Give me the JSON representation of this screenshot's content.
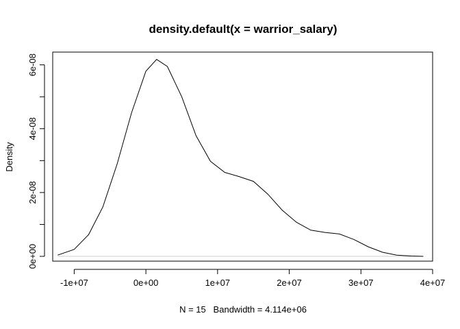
{
  "chart_data": {
    "type": "line",
    "title": "density.default(x = warrior_salary)",
    "xlabel": "N = 15   Bandwidth = 4.114e+06",
    "ylabel": "Density",
    "xlim": [
      -13000000,
      40000000
    ],
    "ylim": [
      -1.5e-09,
      6.4e-08
    ],
    "x_ticks": [
      {
        "value": -10000000,
        "label": "-1e+07"
      },
      {
        "value": 0,
        "label": "0e+00"
      },
      {
        "value": 10000000,
        "label": "1e+07"
      },
      {
        "value": 20000000,
        "label": "2e+07"
      },
      {
        "value": 30000000,
        "label": "3e+07"
      },
      {
        "value": 40000000,
        "label": "4e+07"
      }
    ],
    "y_ticks": [
      {
        "value": 0,
        "label": "0e+00"
      },
      {
        "value": 1e-08,
        "label": ""
      },
      {
        "value": 2e-08,
        "label": "2e-08"
      },
      {
        "value": 3e-08,
        "label": ""
      },
      {
        "value": 4e-08,
        "label": "4e-08"
      },
      {
        "value": 5e-08,
        "label": ""
      },
      {
        "value": 6e-08,
        "label": "6e-08"
      }
    ],
    "grid": false,
    "box": true,
    "baseline": 0,
    "series": [
      {
        "x": [
          -12300000,
          -10000000,
          -8000000,
          -6000000,
          -4000000,
          -2000000,
          0,
          1500000,
          3000000,
          5000000,
          7000000,
          9000000,
          11000000,
          13000000,
          15000000,
          17000000,
          19000000,
          21000000,
          23000000,
          25000000,
          27000000,
          29000000,
          31000000,
          33000000,
          35000000,
          37000000,
          38700000
        ],
        "y": [
          4e-10,
          2.2e-09,
          6.8e-09,
          1.55e-08,
          2.9e-08,
          4.5e-08,
          5.8e-08,
          6.17e-08,
          5.95e-08,
          5e-08,
          3.78e-08,
          2.98e-08,
          2.63e-08,
          2.5e-08,
          2.35e-08,
          1.95e-08,
          1.45e-08,
          1.07e-08,
          8.2e-09,
          7.5e-09,
          7e-09,
          5.3e-09,
          3e-09,
          1.3e-09,
          4e-10,
          1e-10,
          0
        ]
      }
    ]
  }
}
